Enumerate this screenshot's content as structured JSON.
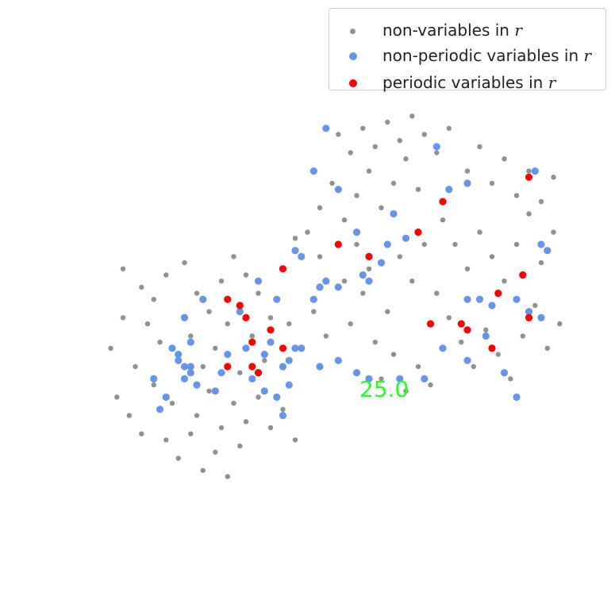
{
  "chart_data": {
    "type": "scatter",
    "title": "",
    "xlabel": "",
    "ylabel": "",
    "axes_visible": false,
    "grid": false,
    "legend_position": "top-right",
    "annotation": {
      "text": "25.0",
      "color": "#22ff22"
    },
    "series": [
      {
        "name": "non-variables in",
        "name_italic": "r",
        "color": "#909090",
        "marker": "small-circle",
        "points": [
          [
            0.2,
            0.44
          ],
          [
            0.23,
            0.47
          ],
          [
            0.25,
            0.49
          ],
          [
            0.27,
            0.45
          ],
          [
            0.3,
            0.43
          ],
          [
            0.32,
            0.48
          ],
          [
            0.34,
            0.51
          ],
          [
            0.36,
            0.46
          ],
          [
            0.38,
            0.42
          ],
          [
            0.4,
            0.45
          ],
          [
            0.24,
            0.53
          ],
          [
            0.26,
            0.56
          ],
          [
            0.29,
            0.58
          ],
          [
            0.31,
            0.55
          ],
          [
            0.33,
            0.6
          ],
          [
            0.35,
            0.57
          ],
          [
            0.37,
            0.53
          ],
          [
            0.39,
            0.61
          ],
          [
            0.41,
            0.55
          ],
          [
            0.43,
            0.59
          ],
          [
            0.22,
            0.6
          ],
          [
            0.25,
            0.63
          ],
          [
            0.28,
            0.66
          ],
          [
            0.3,
            0.62
          ],
          [
            0.32,
            0.68
          ],
          [
            0.34,
            0.64
          ],
          [
            0.36,
            0.7
          ],
          [
            0.38,
            0.66
          ],
          [
            0.4,
            0.69
          ],
          [
            0.42,
            0.65
          ],
          [
            0.27,
            0.72
          ],
          [
            0.29,
            0.75
          ],
          [
            0.31,
            0.71
          ],
          [
            0.33,
            0.77
          ],
          [
            0.35,
            0.74
          ],
          [
            0.37,
            0.78
          ],
          [
            0.39,
            0.73
          ],
          [
            0.44,
            0.7
          ],
          [
            0.46,
            0.67
          ],
          [
            0.48,
            0.72
          ],
          [
            0.45,
            0.49
          ],
          [
            0.47,
            0.53
          ],
          [
            0.49,
            0.57
          ],
          [
            0.51,
            0.51
          ],
          [
            0.53,
            0.55
          ],
          [
            0.55,
            0.59
          ],
          [
            0.57,
            0.53
          ],
          [
            0.59,
            0.48
          ],
          [
            0.61,
            0.56
          ],
          [
            0.63,
            0.51
          ],
          [
            0.5,
            0.38
          ],
          [
            0.52,
            0.34
          ],
          [
            0.54,
            0.3
          ],
          [
            0.56,
            0.36
          ],
          [
            0.58,
            0.32
          ],
          [
            0.6,
            0.28
          ],
          [
            0.62,
            0.34
          ],
          [
            0.64,
            0.3
          ],
          [
            0.66,
            0.26
          ],
          [
            0.68,
            0.31
          ],
          [
            0.55,
            0.22
          ],
          [
            0.57,
            0.25
          ],
          [
            0.59,
            0.21
          ],
          [
            0.61,
            0.24
          ],
          [
            0.63,
            0.2
          ],
          [
            0.65,
            0.23
          ],
          [
            0.67,
            0.19
          ],
          [
            0.69,
            0.22
          ],
          [
            0.71,
            0.25
          ],
          [
            0.73,
            0.21
          ],
          [
            0.72,
            0.36
          ],
          [
            0.74,
            0.4
          ],
          [
            0.76,
            0.44
          ],
          [
            0.78,
            0.38
          ],
          [
            0.8,
            0.42
          ],
          [
            0.82,
            0.46
          ],
          [
            0.84,
            0.4
          ],
          [
            0.86,
            0.35
          ],
          [
            0.88,
            0.43
          ],
          [
            0.9,
            0.38
          ],
          [
            0.73,
            0.52
          ],
          [
            0.75,
            0.56
          ],
          [
            0.77,
            0.6
          ],
          [
            0.79,
            0.54
          ],
          [
            0.81,
            0.58
          ],
          [
            0.83,
            0.62
          ],
          [
            0.85,
            0.55
          ],
          [
            0.87,
            0.5
          ],
          [
            0.89,
            0.57
          ],
          [
            0.91,
            0.53
          ],
          [
            0.76,
            0.28
          ],
          [
            0.78,
            0.24
          ],
          [
            0.8,
            0.3
          ],
          [
            0.82,
            0.26
          ],
          [
            0.84,
            0.32
          ],
          [
            0.86,
            0.28
          ],
          [
            0.88,
            0.33
          ],
          [
            0.9,
            0.29
          ],
          [
            0.65,
            0.42
          ],
          [
            0.67,
            0.46
          ],
          [
            0.69,
            0.4
          ],
          [
            0.71,
            0.48
          ],
          [
            0.62,
            0.62
          ],
          [
            0.64,
            0.58
          ],
          [
            0.66,
            0.64
          ],
          [
            0.68,
            0.6
          ],
          [
            0.7,
            0.63
          ],
          [
            0.58,
            0.4
          ],
          [
            0.6,
            0.44
          ],
          [
            0.56,
            0.46
          ],
          [
            0.52,
            0.42
          ],
          [
            0.48,
            0.39
          ],
          [
            0.46,
            0.44
          ],
          [
            0.44,
            0.52
          ],
          [
            0.42,
            0.48
          ],
          [
            0.21,
            0.68
          ],
          [
            0.23,
            0.71
          ],
          [
            0.19,
            0.65
          ],
          [
            0.18,
            0.57
          ],
          [
            0.2,
            0.52
          ]
        ]
      },
      {
        "name": "non-periodic variables in",
        "name_italic": "r",
        "color": "#6495ed",
        "marker": "circle",
        "points": [
          [
            0.53,
            0.21
          ],
          [
            0.51,
            0.28
          ],
          [
            0.55,
            0.31
          ],
          [
            0.64,
            0.35
          ],
          [
            0.58,
            0.38
          ],
          [
            0.63,
            0.4
          ],
          [
            0.6,
            0.42
          ],
          [
            0.48,
            0.41
          ],
          [
            0.49,
            0.42
          ],
          [
            0.53,
            0.46
          ],
          [
            0.59,
            0.45
          ],
          [
            0.6,
            0.46
          ],
          [
            0.62,
            0.43
          ],
          [
            0.66,
            0.39
          ],
          [
            0.71,
            0.24
          ],
          [
            0.76,
            0.3
          ],
          [
            0.73,
            0.31
          ],
          [
            0.87,
            0.28
          ],
          [
            0.88,
            0.4
          ],
          [
            0.89,
            0.41
          ],
          [
            0.84,
            0.49
          ],
          [
            0.86,
            0.51
          ],
          [
            0.88,
            0.52
          ],
          [
            0.78,
            0.49
          ],
          [
            0.8,
            0.5
          ],
          [
            0.52,
            0.47
          ],
          [
            0.55,
            0.47
          ],
          [
            0.51,
            0.49
          ],
          [
            0.45,
            0.49
          ],
          [
            0.42,
            0.46
          ],
          [
            0.39,
            0.51
          ],
          [
            0.33,
            0.49
          ],
          [
            0.3,
            0.52
          ],
          [
            0.28,
            0.57
          ],
          [
            0.31,
            0.6
          ],
          [
            0.3,
            0.62
          ],
          [
            0.29,
            0.59
          ],
          [
            0.31,
            0.56
          ],
          [
            0.42,
            0.61
          ],
          [
            0.43,
            0.58
          ],
          [
            0.44,
            0.56
          ],
          [
            0.46,
            0.6
          ],
          [
            0.47,
            0.59
          ],
          [
            0.48,
            0.57
          ],
          [
            0.52,
            0.6
          ],
          [
            0.55,
            0.59
          ],
          [
            0.58,
            0.61
          ],
          [
            0.6,
            0.62
          ],
          [
            0.65,
            0.62
          ],
          [
            0.69,
            0.62
          ],
          [
            0.72,
            0.57
          ],
          [
            0.76,
            0.59
          ],
          [
            0.79,
            0.55
          ],
          [
            0.82,
            0.61
          ],
          [
            0.84,
            0.65
          ],
          [
            0.76,
            0.49
          ],
          [
            0.3,
            0.6
          ],
          [
            0.31,
            0.61
          ],
          [
            0.32,
            0.63
          ],
          [
            0.35,
            0.64
          ],
          [
            0.36,
            0.61
          ],
          [
            0.37,
            0.58
          ],
          [
            0.4,
            0.57
          ],
          [
            0.41,
            0.62
          ],
          [
            0.43,
            0.64
          ],
          [
            0.45,
            0.65
          ],
          [
            0.46,
            0.68
          ],
          [
            0.47,
            0.63
          ],
          [
            0.49,
            0.57
          ],
          [
            0.27,
            0.65
          ],
          [
            0.25,
            0.62
          ],
          [
            0.26,
            0.67
          ],
          [
            0.29,
            0.58
          ]
        ]
      },
      {
        "name": "periodic variables in",
        "name_italic": "r",
        "color": "#ff0000",
        "marker": "circle",
        "points": [
          [
            0.86,
            0.29
          ],
          [
            0.72,
            0.33
          ],
          [
            0.68,
            0.38
          ],
          [
            0.55,
            0.4
          ],
          [
            0.6,
            0.42
          ],
          [
            0.46,
            0.44
          ],
          [
            0.85,
            0.45
          ],
          [
            0.81,
            0.48
          ],
          [
            0.37,
            0.49
          ],
          [
            0.39,
            0.5
          ],
          [
            0.4,
            0.52
          ],
          [
            0.7,
            0.53
          ],
          [
            0.75,
            0.53
          ],
          [
            0.76,
            0.54
          ],
          [
            0.44,
            0.54
          ],
          [
            0.41,
            0.56
          ],
          [
            0.86,
            0.52
          ],
          [
            0.46,
            0.57
          ],
          [
            0.8,
            0.57
          ],
          [
            0.37,
            0.6
          ],
          [
            0.41,
            0.6
          ],
          [
            0.42,
            0.61
          ]
        ]
      }
    ]
  }
}
